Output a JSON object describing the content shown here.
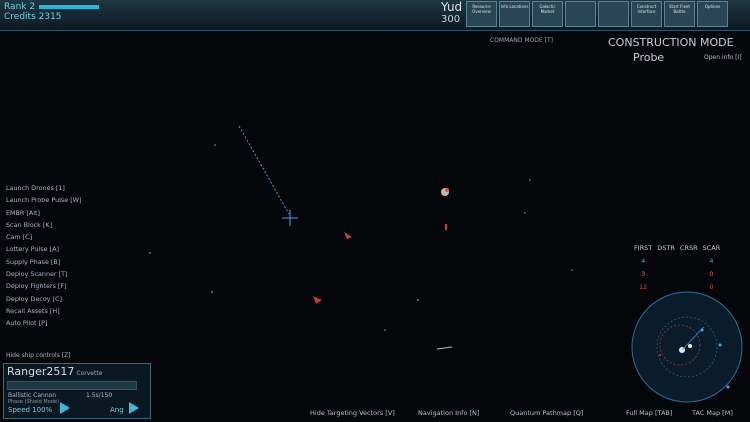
{
  "hud": {
    "rank_label": "Rank 2",
    "credits_label": "Credits 2315"
  },
  "resources": {
    "label": "Yud",
    "value": "300"
  },
  "toolbar": {
    "buttons": [
      {
        "label": "Resource Overview"
      },
      {
        "label": "Info Locations"
      },
      {
        "label": "Galactic Market"
      },
      {
        "label": ""
      },
      {
        "label": ""
      },
      {
        "label": "Construct Interface"
      },
      {
        "label": "Start Fleet Battle"
      },
      {
        "label": "Options"
      }
    ]
  },
  "mode": {
    "command_mode": "COMMAND MODE   [T]",
    "construction_mode": "CONSTRUCTION MODE",
    "selected": "Probe",
    "open_info": "Open info  [I]"
  },
  "menu": {
    "items": [
      "Launch Drones [1]",
      "Launch Probe Pulse [W]",
      "EMBR [Alt]",
      "Scan Block [K]",
      "Cam [C]",
      "Lottery Pulse [A]",
      "Supply Phase [B]",
      "Deploy Scanner [T]",
      "Deploy Fighters [F]",
      "Deploy Decoy [C]",
      "Recall Assets [H]",
      "Auto Pilot [P]"
    ],
    "hide_label": "Hide ship controls [Z]"
  },
  "ship": {
    "name": "Ranger2517",
    "class": "Corvette",
    "weapon": "Ballistic Cannon",
    "weapon_time": "1.5s/150",
    "status_small": "Phase (Shield Mode)",
    "speed_label": "Speed 100%",
    "angle_label": "Ang"
  },
  "bottom": {
    "links": [
      "Hide Targeting Vectors [V]",
      "Navigation Info [N]",
      "Quantum Pathmap [Q]",
      "Full Map [TAB]",
      "TAC Map [M]"
    ]
  },
  "scoreboard": {
    "headers": [
      "FIRST",
      "DSTR",
      "CRSR",
      "SCAR"
    ],
    "rows": [
      [
        "4",
        "",
        "",
        "4"
      ],
      [
        "3",
        "",
        "",
        "0"
      ],
      [
        "12",
        "",
        "",
        "0"
      ]
    ]
  },
  "colors": {
    "accent": "#2bb6d6",
    "friendly": "#4aa5e5",
    "enemy": "#e04a4a",
    "panel_border": "#3a6a7a"
  }
}
